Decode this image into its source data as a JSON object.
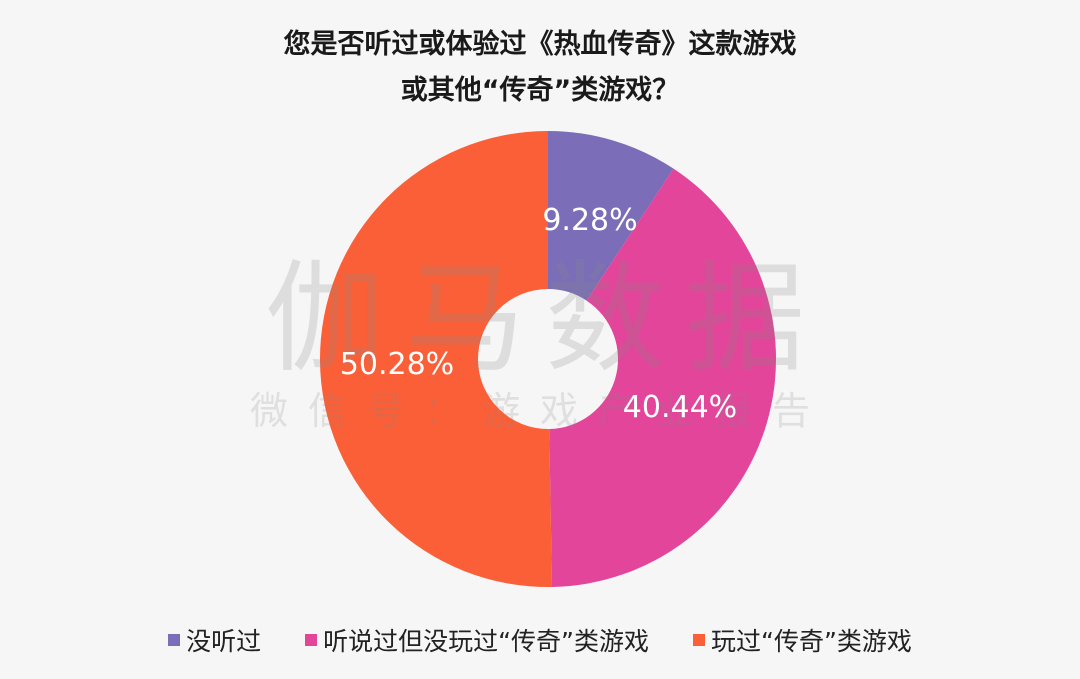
{
  "chart_data": {
    "type": "pie",
    "donut": true,
    "title_lines": [
      "您是否听过或体验过《热血传奇》这款游戏",
      "或其他“传奇”类游戏？"
    ],
    "categories": [
      "没听过",
      "听说过但没玩过“传奇”类游戏",
      "玩过“传奇”类游戏"
    ],
    "values": [
      9.28,
      40.44,
      50.28
    ],
    "labels": [
      "9.28%",
      "40.44%",
      "50.28%"
    ],
    "colors": [
      "#7B6DB8",
      "#E2459A",
      "#FB5F37"
    ],
    "legend_position": "bottom"
  },
  "watermark": {
    "main": "伽马数据",
    "sub": "微信号：游戏产业报告"
  }
}
